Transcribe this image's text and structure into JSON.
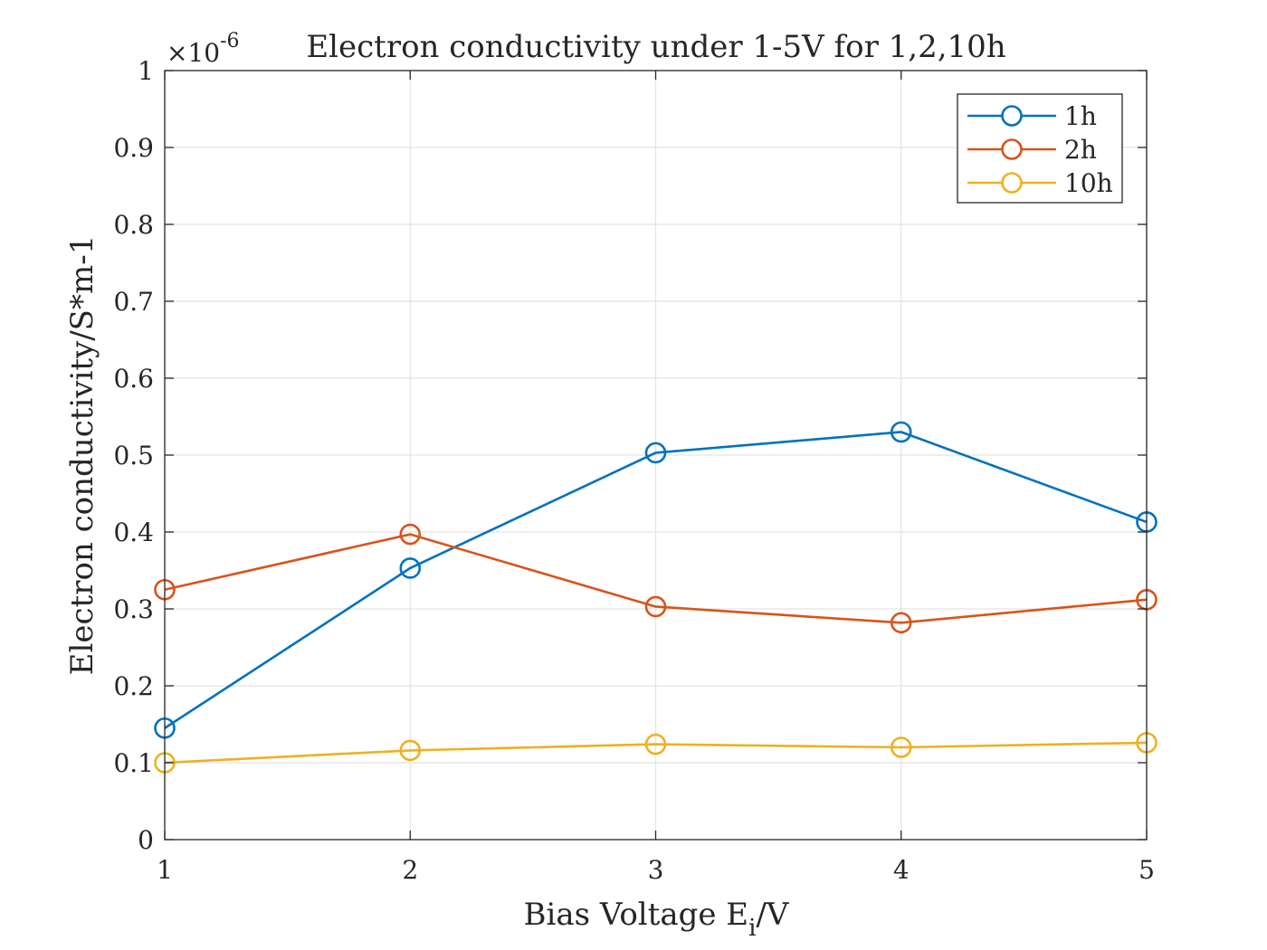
{
  "chart_data": {
    "type": "line",
    "title": "Electron conductivity under 1-5V for 1,2,10h",
    "xlabel": {
      "main": "Bias Voltage E",
      "sub": "i",
      "suffix": "/V"
    },
    "ylabel": "Electron conductivity/S*m-1",
    "y_exponent": {
      "base": "×10",
      "power": "-6"
    },
    "x": [
      1,
      2,
      3,
      4,
      5
    ],
    "xlim": [
      1,
      5
    ],
    "ylim": [
      0,
      1
    ],
    "x_ticks": [
      "1",
      "2",
      "3",
      "4",
      "5"
    ],
    "y_ticks": [
      "0",
      "0.1",
      "0.2",
      "0.3",
      "0.4",
      "0.5",
      "0.6",
      "0.7",
      "0.8",
      "0.9",
      "1"
    ],
    "grid": true,
    "legend_position": "top-right",
    "series": [
      {
        "name": "1h",
        "color": "#0072BD",
        "values": [
          0.145,
          0.353,
          0.503,
          0.53,
          0.413
        ]
      },
      {
        "name": "2h",
        "color": "#D95319",
        "values": [
          0.325,
          0.397,
          0.303,
          0.282,
          0.312
        ]
      },
      {
        "name": "10h",
        "color": "#EDB120",
        "values": [
          0.1,
          0.116,
          0.124,
          0.12,
          0.126
        ]
      }
    ]
  }
}
